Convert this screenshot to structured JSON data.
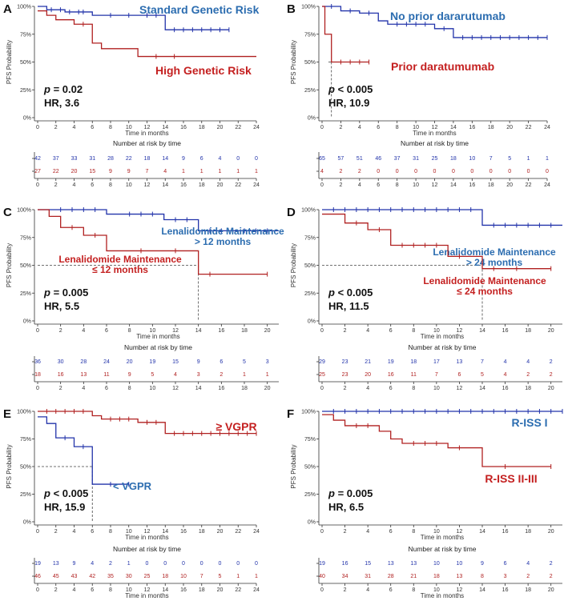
{
  "colors": {
    "blue": "#2233aa",
    "red": "#b02020",
    "blueLabel": "#2c6db0",
    "redLabel": "#c42020"
  },
  "chart_data": [
    {
      "panel": "A",
      "type": "line",
      "ylabel": "PFS Probability",
      "xlabel": "Time in months",
      "xlim": [
        0,
        24
      ],
      "xticks": [
        0,
        2,
        4,
        6,
        8,
        10,
        12,
        14,
        16,
        18,
        20,
        22,
        24
      ],
      "ylim": [
        0,
        1
      ],
      "yticks": [
        "0%",
        "25%",
        "50%",
        "75%",
        "100%"
      ],
      "risk_title": "Number at risk by time",
      "risk_x": [
        0,
        2,
        4,
        6,
        8,
        10,
        12,
        14,
        16,
        18,
        20,
        22,
        24
      ],
      "p_text": "p = 0.02",
      "hr_text": "HR, 3.6",
      "series": [
        {
          "name": "Standard Genetic Risk",
          "color": "blue",
          "steps": [
            [
              0,
              1
            ],
            [
              1,
              0.97
            ],
            [
              3,
              0.95
            ],
            [
              6,
              0.92
            ],
            [
              14,
              0.79
            ],
            [
              21,
              0.79
            ]
          ],
          "censor": [
            1.5,
            2.5,
            3.5,
            4.5,
            5,
            8,
            10,
            12,
            13,
            15,
            16,
            17,
            18,
            19,
            20,
            21
          ],
          "label_lines": [
            "Standard Genetic Risk"
          ],
          "risk": [
            42,
            37,
            33,
            31,
            28,
            22,
            18,
            14,
            9,
            6,
            4,
            0,
            0
          ]
        },
        {
          "name": "High Genetic Risk",
          "color": "red",
          "steps": [
            [
              0,
              0.96
            ],
            [
              1,
              0.92
            ],
            [
              2,
              0.88
            ],
            [
              4,
              0.84
            ],
            [
              6,
              0.67
            ],
            [
              7,
              0.62
            ],
            [
              11,
              0.55
            ],
            [
              24,
              0.55
            ]
          ],
          "censor": [
            5,
            13,
            15
          ],
          "label_lines": [
            "High Genetic Risk"
          ],
          "risk": [
            27,
            22,
            20,
            15,
            9,
            9,
            7,
            4,
            1,
            1,
            1,
            1,
            1
          ]
        }
      ]
    },
    {
      "panel": "B",
      "type": "line",
      "ylabel": "PFS Probability",
      "xlabel": "Time in months",
      "xlim": [
        0,
        24
      ],
      "xticks": [
        0,
        2,
        4,
        6,
        8,
        10,
        12,
        14,
        16,
        18,
        20,
        22,
        24
      ],
      "ylim": [
        0,
        1
      ],
      "yticks": [
        "0%",
        "25%",
        "50%",
        "75%",
        "100%"
      ],
      "risk_title": "Number at risk by time",
      "risk_x": [
        0,
        2,
        4,
        6,
        8,
        10,
        12,
        14,
        16,
        18,
        20,
        22,
        24
      ],
      "p_text": "p < 0.005",
      "hr_text": "HR, 10.9",
      "series": [
        {
          "name": "No prior dararutumab",
          "color": "blue",
          "steps": [
            [
              0,
              1
            ],
            [
              2,
              0.96
            ],
            [
              4,
              0.94
            ],
            [
              6,
              0.87
            ],
            [
              7,
              0.84
            ],
            [
              12,
              0.8
            ],
            [
              14,
              0.72
            ],
            [
              24,
              0.72
            ]
          ],
          "censor": [
            1,
            3,
            5,
            8,
            9,
            10,
            11,
            13,
            15,
            16,
            17,
            18,
            19,
            20,
            21,
            22,
            23,
            24
          ],
          "label_lines": [
            "No prior dararutumab"
          ],
          "risk": [
            65,
            57,
            51,
            46,
            37,
            31,
            25,
            18,
            10,
            7,
            5,
            1,
            1
          ]
        },
        {
          "name": "Prior daratumumab",
          "color": "red",
          "steps": [
            [
              0,
              1
            ],
            [
              0.3,
              0.75
            ],
            [
              1,
              0.5
            ],
            [
              5,
              0.5
            ]
          ],
          "censor": [
            2,
            3,
            4,
            5
          ],
          "label_lines": [
            "Prior daratumumab"
          ],
          "risk": [
            4,
            2,
            2,
            0,
            0,
            0,
            0,
            0,
            0,
            0,
            0,
            0,
            0
          ]
        }
      ]
    },
    {
      "panel": "C",
      "type": "line",
      "ylabel": "PFS Probability",
      "xlabel": "Time in months",
      "xlim": [
        0,
        21
      ],
      "xticks": [
        0,
        2,
        4,
        6,
        8,
        10,
        12,
        14,
        16,
        18,
        20
      ],
      "ylim": [
        0,
        1
      ],
      "yticks": [
        "0%",
        "25%",
        "50%",
        "75%",
        "100%"
      ],
      "risk_title": "Number at risk by time",
      "risk_x": [
        0,
        2,
        4,
        6,
        8,
        10,
        12,
        14,
        16,
        18,
        20
      ],
      "p_text": "p = 0.005",
      "hr_text": "HR, 5.5",
      "series": [
        {
          "name": "Lenalidomide Maintenance > 12 months",
          "color": "blue",
          "steps": [
            [
              0,
              1
            ],
            [
              6,
              0.96
            ],
            [
              11,
              0.91
            ],
            [
              14,
              0.81
            ],
            [
              21,
              0.81
            ]
          ],
          "censor": [
            2,
            3,
            4,
            5,
            8,
            9,
            10,
            12,
            13,
            15,
            16,
            17,
            18,
            19,
            20
          ],
          "label_lines": [
            "Lenalidomide Maintenance",
            "> 12 months"
          ],
          "risk": [
            36,
            30,
            28,
            24,
            20,
            19,
            15,
            9,
            6,
            5,
            3
          ]
        },
        {
          "name": "Lenalidomide Maintenance ≤ 12 months",
          "color": "red",
          "steps": [
            [
              0,
              1
            ],
            [
              1,
              0.94
            ],
            [
              2,
              0.84
            ],
            [
              4,
              0.77
            ],
            [
              6,
              0.63
            ],
            [
              14,
              0.42
            ],
            [
              20,
              0.42
            ]
          ],
          "censor": [
            3,
            5,
            9,
            12,
            15,
            20
          ],
          "label_lines": [
            "Lenalidomide Maintenance",
            "≤ 12 months"
          ],
          "risk": [
            18,
            16,
            13,
            11,
            9,
            5,
            4,
            3,
            2,
            1,
            1
          ]
        }
      ]
    },
    {
      "panel": "D",
      "type": "line",
      "ylabel": "PFS Probability",
      "xlabel": "Time in months",
      "xlim": [
        0,
        21
      ],
      "xticks": [
        0,
        2,
        4,
        6,
        8,
        10,
        12,
        14,
        16,
        18,
        20
      ],
      "ylim": [
        0,
        1
      ],
      "yticks": [
        "0%",
        "25%",
        "50%",
        "75%",
        "100%"
      ],
      "risk_title": "Number at risk by time",
      "risk_x": [
        0,
        2,
        4,
        6,
        8,
        10,
        12,
        14,
        16,
        18,
        20
      ],
      "p_text": "p < 0.005",
      "hr_text": "HR, 11.5",
      "series": [
        {
          "name": "Lenalidomide Maintenance > 24 months",
          "color": "blue",
          "steps": [
            [
              0,
              1
            ],
            [
              14,
              0.86
            ],
            [
              21,
              0.86
            ]
          ],
          "censor": [
            1,
            2,
            3,
            4,
            5,
            6,
            7,
            8,
            9,
            10,
            11,
            12,
            13,
            15,
            16,
            17,
            18,
            19,
            20
          ],
          "label_lines": [
            "Lenalidomide Maintenance",
            "> 24 months"
          ],
          "risk": [
            29,
            23,
            21,
            19,
            18,
            17,
            13,
            7,
            4,
            4,
            2
          ]
        },
        {
          "name": "Lenalidomide Maintenance ≤ 24 months",
          "color": "red",
          "steps": [
            [
              0,
              0.96
            ],
            [
              2,
              0.88
            ],
            [
              4,
              0.82
            ],
            [
              6,
              0.68
            ],
            [
              11,
              0.58
            ],
            [
              14,
              0.47
            ],
            [
              20,
              0.47
            ]
          ],
          "censor": [
            3,
            5,
            7,
            8,
            9,
            10,
            12,
            15,
            17,
            20
          ],
          "label_lines": [
            "Lenalidomide Maintenance",
            "≤ 24 months"
          ],
          "risk": [
            25,
            23,
            20,
            16,
            11,
            7,
            6,
            5,
            4,
            2,
            2
          ]
        }
      ]
    },
    {
      "panel": "E",
      "type": "line",
      "ylabel": "PFS Probability",
      "xlabel": "Time in months",
      "xlim": [
        0,
        24
      ],
      "xticks": [
        0,
        2,
        4,
        6,
        8,
        10,
        12,
        14,
        16,
        18,
        20,
        22,
        24
      ],
      "ylim": [
        0,
        1
      ],
      "yticks": [
        "0%",
        "25%",
        "50%",
        "75%",
        "100%"
      ],
      "risk_title": "Number at risk by time",
      "risk_x": [
        0,
        2,
        4,
        6,
        8,
        10,
        12,
        14,
        16,
        18,
        20,
        22,
        24
      ],
      "p_text": "p < 0.005",
      "hr_text": "HR, 15.9",
      "series": [
        {
          "name": "< VGPR",
          "color": "blue",
          "steps": [
            [
              0,
              0.95
            ],
            [
              1,
              0.89
            ],
            [
              2,
              0.76
            ],
            [
              4,
              0.68
            ],
            [
              6,
              0.34
            ],
            [
              10,
              0.34
            ]
          ],
          "censor": [
            3,
            5,
            8,
            10
          ],
          "label_lines": [
            "< VGPR"
          ],
          "risk": [
            19,
            13,
            9,
            4,
            2,
            1,
            0,
            0,
            0,
            0,
            0,
            0,
            0
          ]
        },
        {
          "name": "≥ VGPR",
          "color": "red",
          "steps": [
            [
              0,
              1
            ],
            [
              6,
              0.96
            ],
            [
              7,
              0.93
            ],
            [
              11,
              0.9
            ],
            [
              14,
              0.8
            ],
            [
              24,
              0.8
            ]
          ],
          "censor": [
            1,
            2,
            3,
            4,
            5,
            8,
            9,
            10,
            12,
            13,
            15,
            16,
            17,
            18,
            19,
            20,
            21,
            22,
            23,
            24
          ],
          "label_lines": [
            "≥ VGPR"
          ],
          "risk": [
            46,
            45,
            43,
            42,
            35,
            30,
            25,
            18,
            10,
            7,
            5,
            1,
            1
          ]
        }
      ]
    },
    {
      "panel": "F",
      "type": "line",
      "ylabel": "PFS Probability",
      "xlabel": "Time in months",
      "xlim": [
        0,
        21
      ],
      "xticks": [
        0,
        2,
        4,
        6,
        8,
        10,
        12,
        14,
        16,
        18,
        20
      ],
      "ylim": [
        0,
        1
      ],
      "yticks": [
        "0%",
        "25%",
        "50%",
        "75%",
        "100%"
      ],
      "risk_title": "Number at risk by time",
      "risk_x": [
        0,
        2,
        4,
        6,
        8,
        10,
        12,
        14,
        16,
        18,
        20
      ],
      "p_text": "p = 0.005",
      "hr_text": "HR, 6.5",
      "series": [
        {
          "name": "R-ISS I",
          "color": "blue",
          "steps": [
            [
              0,
              1
            ],
            [
              21,
              1
            ]
          ],
          "censor": [
            1,
            2,
            3,
            4,
            5,
            6,
            7,
            8,
            9,
            10,
            11,
            12,
            13,
            14,
            15,
            16,
            17,
            18,
            19,
            20,
            21
          ],
          "label_lines": [
            "R-ISS I"
          ],
          "risk": [
            19,
            16,
            15,
            13,
            13,
            10,
            10,
            9,
            6,
            4,
            2
          ]
        },
        {
          "name": "R-ISS II-III",
          "color": "red",
          "steps": [
            [
              0,
              0.97
            ],
            [
              1,
              0.92
            ],
            [
              2,
              0.87
            ],
            [
              5,
              0.82
            ],
            [
              6,
              0.75
            ],
            [
              7,
              0.71
            ],
            [
              11,
              0.67
            ],
            [
              14,
              0.5
            ],
            [
              20,
              0.5
            ]
          ],
          "censor": [
            3,
            4,
            8,
            9,
            10,
            12,
            16,
            20
          ],
          "label_lines": [
            "R-ISS II-III"
          ],
          "risk": [
            40,
            34,
            31,
            28,
            21,
            18,
            13,
            8,
            3,
            2,
            2
          ]
        }
      ]
    }
  ]
}
